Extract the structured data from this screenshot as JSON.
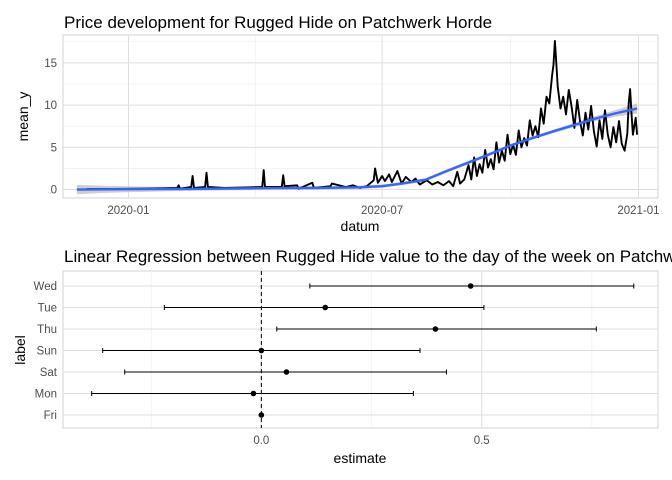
{
  "chart_data": [
    {
      "type": "line",
      "title": "Price development for Rugged Hide on Patchwerk Horde",
      "xlabel": "datum",
      "ylabel": "mean_y",
      "x_ticks": [
        "2020-01",
        "2020-07",
        "2021-01"
      ],
      "y_ticks": [
        "0",
        "5",
        "10",
        "15"
      ],
      "xlim": [
        "2019-11-15",
        "2021-01-15"
      ],
      "ylim": [
        -1,
        18.3
      ],
      "grid": true,
      "legend": "none",
      "series": [
        {
          "style": "price",
          "color": "#000000",
          "points": [
            [
              "2019-12-02",
              0.05
            ],
            [
              "2019-12-20",
              0.08
            ],
            [
              "2020-01-10",
              0.1
            ],
            [
              "2020-01-25",
              0.15
            ],
            [
              "2020-02-05",
              0.2
            ],
            [
              "2020-02-06",
              0.5
            ],
            [
              "2020-02-07",
              0.1
            ],
            [
              "2020-02-15",
              0.3
            ],
            [
              "2020-02-16",
              1.6
            ],
            [
              "2020-02-17",
              0.2
            ],
            [
              "2020-02-25",
              0.3
            ],
            [
              "2020-02-26",
              2.0
            ],
            [
              "2020-02-27",
              0.3
            ],
            [
              "2020-03-10",
              0.2
            ],
            [
              "2020-03-25",
              0.25
            ],
            [
              "2020-04-06",
              0.3
            ],
            [
              "2020-04-07",
              2.3
            ],
            [
              "2020-04-08",
              0.3
            ],
            [
              "2020-04-20",
              0.3
            ],
            [
              "2020-04-21",
              1.7
            ],
            [
              "2020-04-22",
              0.4
            ],
            [
              "2020-05-01",
              0.5
            ],
            [
              "2020-05-02",
              0.1
            ],
            [
              "2020-05-12",
              0.8
            ],
            [
              "2020-05-13",
              0.2
            ],
            [
              "2020-05-25",
              0.4
            ],
            [
              "2020-05-26",
              0.7
            ],
            [
              "2020-06-05",
              0.3
            ],
            [
              "2020-06-10",
              0.5
            ],
            [
              "2020-06-15",
              0.2
            ],
            [
              "2020-06-20",
              0.4
            ],
            [
              "2020-06-25",
              1.1
            ],
            [
              "2020-06-26",
              2.5
            ],
            [
              "2020-06-28",
              0.8
            ],
            [
              "2020-07-01",
              1.6
            ],
            [
              "2020-07-03",
              1.0
            ],
            [
              "2020-07-06",
              1.8
            ],
            [
              "2020-07-08",
              0.9
            ],
            [
              "2020-07-12",
              2.2
            ],
            [
              "2020-07-15",
              0.7
            ],
            [
              "2020-07-18",
              1.5
            ],
            [
              "2020-07-22",
              0.9
            ],
            [
              "2020-07-25",
              1.3
            ],
            [
              "2020-07-28",
              0.6
            ],
            [
              "2020-08-02",
              1.1
            ],
            [
              "2020-08-06",
              0.6
            ],
            [
              "2020-08-10",
              0.9
            ],
            [
              "2020-08-14",
              0.5
            ],
            [
              "2020-08-18",
              1.0
            ],
            [
              "2020-08-21",
              0.4
            ],
            [
              "2020-08-24",
              2.1
            ],
            [
              "2020-08-26",
              0.7
            ],
            [
              "2020-08-29",
              1.2
            ],
            [
              "2020-09-01",
              2.9
            ],
            [
              "2020-09-03",
              1.2
            ],
            [
              "2020-09-05",
              3.8
            ],
            [
              "2020-09-07",
              1.6
            ],
            [
              "2020-09-09",
              3.0
            ],
            [
              "2020-09-11",
              2.0
            ],
            [
              "2020-09-13",
              4.7
            ],
            [
              "2020-09-15",
              2.6
            ],
            [
              "2020-09-17",
              3.6
            ],
            [
              "2020-09-19",
              2.4
            ],
            [
              "2020-09-21",
              5.6
            ],
            [
              "2020-09-23",
              3.2
            ],
            [
              "2020-09-25",
              4.6
            ],
            [
              "2020-09-27",
              3.4
            ],
            [
              "2020-09-29",
              6.5
            ],
            [
              "2020-10-01",
              4.2
            ],
            [
              "2020-10-03",
              5.3
            ],
            [
              "2020-10-05",
              4.1
            ],
            [
              "2020-10-07",
              7.0
            ],
            [
              "2020-10-09",
              5.0
            ],
            [
              "2020-10-11",
              6.1
            ],
            [
              "2020-10-13",
              5.2
            ],
            [
              "2020-10-15",
              8.2
            ],
            [
              "2020-10-17",
              6.4
            ],
            [
              "2020-10-19",
              7.5
            ],
            [
              "2020-10-21",
              6.2
            ],
            [
              "2020-10-23",
              9.6
            ],
            [
              "2020-10-25",
              7.8
            ],
            [
              "2020-10-27",
              11.0
            ],
            [
              "2020-10-29",
              10.2
            ],
            [
              "2020-10-31",
              13.5
            ],
            [
              "2020-11-01",
              14.8
            ],
            [
              "2020-11-02",
              17.6
            ],
            [
              "2020-11-03",
              15.0
            ],
            [
              "2020-11-04",
              12.2
            ],
            [
              "2020-11-06",
              9.6
            ],
            [
              "2020-11-08",
              11.0
            ],
            [
              "2020-11-10",
              8.9
            ],
            [
              "2020-11-12",
              11.8
            ],
            [
              "2020-11-14",
              9.8
            ],
            [
              "2020-11-16",
              7.3
            ],
            [
              "2020-11-18",
              10.6
            ],
            [
              "2020-11-20",
              8.1
            ],
            [
              "2020-11-22",
              6.4
            ],
            [
              "2020-11-24",
              9.1
            ],
            [
              "2020-11-26",
              7.1
            ],
            [
              "2020-11-28",
              9.9
            ],
            [
              "2020-11-30",
              6.9
            ],
            [
              "2020-12-02",
              5.1
            ],
            [
              "2020-12-04",
              8.2
            ],
            [
              "2020-12-06",
              6.0
            ],
            [
              "2020-12-08",
              9.4
            ],
            [
              "2020-12-10",
              6.5
            ],
            [
              "2020-12-12",
              5.0
            ],
            [
              "2020-12-14",
              7.4
            ],
            [
              "2020-12-16",
              5.6
            ],
            [
              "2020-12-18",
              8.1
            ],
            [
              "2020-12-20",
              5.4
            ],
            [
              "2020-12-22",
              4.6
            ],
            [
              "2020-12-24",
              6.6
            ],
            [
              "2020-12-25",
              10.2
            ],
            [
              "2020-12-26",
              11.9
            ],
            [
              "2020-12-27",
              9.0
            ],
            [
              "2020-12-28",
              6.5
            ],
            [
              "2020-12-30",
              8.5
            ],
            [
              "2020-12-31",
              6.5
            ]
          ]
        },
        {
          "style": "smooth",
          "color": "#3366ff",
          "band_color": "#bdbdbd",
          "points": [
            [
              "2019-11-25",
              0.0,
              -0.55,
              0.55
            ],
            [
              "2019-12-15",
              0.03,
              -0.4,
              0.45
            ],
            [
              "2020-01-15",
              0.05,
              -0.25,
              0.35
            ],
            [
              "2020-02-15",
              0.08,
              -0.15,
              0.3
            ],
            [
              "2020-03-15",
              0.12,
              -0.08,
              0.32
            ],
            [
              "2020-04-15",
              0.17,
              -0.03,
              0.37
            ],
            [
              "2020-05-15",
              0.2,
              0.0,
              0.4
            ],
            [
              "2020-06-15",
              0.27,
              0.07,
              0.47
            ],
            [
              "2020-07-01",
              0.4,
              0.2,
              0.6
            ],
            [
              "2020-07-15",
              0.7,
              0.5,
              0.9
            ],
            [
              "2020-08-01",
              1.15,
              0.95,
              1.35
            ],
            [
              "2020-08-15",
              2.1,
              1.9,
              2.3
            ],
            [
              "2020-09-01",
              3.2,
              3.0,
              3.4
            ],
            [
              "2020-09-15",
              4.1,
              3.9,
              4.3
            ],
            [
              "2020-10-01",
              5.2,
              5.0,
              5.4
            ],
            [
              "2020-10-15",
              6.0,
              5.8,
              6.2
            ],
            [
              "2020-11-01",
              6.9,
              6.7,
              7.1
            ],
            [
              "2020-11-15",
              7.6,
              7.35,
              7.85
            ],
            [
              "2020-12-01",
              8.4,
              8.1,
              8.7
            ],
            [
              "2020-12-15",
              9.0,
              8.6,
              9.4
            ],
            [
              "2020-12-31",
              9.6,
              9.0,
              10.2
            ]
          ]
        }
      ]
    },
    {
      "type": "scatter",
      "title": "Linear Regression between Rugged Hide value to the day of the week on Patchwerk Horde",
      "xlabel": "estimate",
      "ylabel": "label",
      "x_ticks": [
        "0.0",
        "0.5"
      ],
      "xlim": [
        -0.45,
        0.9
      ],
      "reference_line": 0,
      "grid": true,
      "legend": "none",
      "categories": [
        "Wed",
        "Tue",
        "Thu",
        "Sun",
        "Sat",
        "Mon",
        "Fri"
      ],
      "estimates": [
        {
          "label": "Wed",
          "estimate": 0.475,
          "low": 0.11,
          "high": 0.845
        },
        {
          "label": "Tue",
          "estimate": 0.145,
          "low": -0.22,
          "high": 0.505
        },
        {
          "label": "Thu",
          "estimate": 0.395,
          "low": 0.035,
          "high": 0.76
        },
        {
          "label": "Sun",
          "estimate": 0.0,
          "low": -0.36,
          "high": 0.36
        },
        {
          "label": "Sat",
          "estimate": 0.057,
          "low": -0.31,
          "high": 0.42
        },
        {
          "label": "Mon",
          "estimate": -0.018,
          "low": -0.385,
          "high": 0.345
        },
        {
          "label": "Fri",
          "estimate": 0.0,
          "low": 0.0,
          "high": 0.0
        }
      ]
    }
  ]
}
